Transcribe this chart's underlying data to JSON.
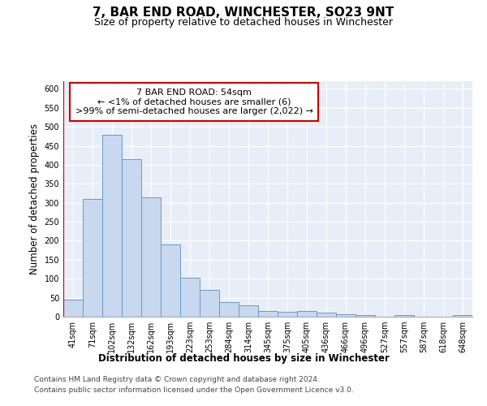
{
  "title": "7, BAR END ROAD, WINCHESTER, SO23 9NT",
  "subtitle": "Size of property relative to detached houses in Winchester",
  "xlabel": "Distribution of detached houses by size in Winchester",
  "ylabel": "Number of detached properties",
  "categories": [
    "41sqm",
    "71sqm",
    "102sqm",
    "132sqm",
    "162sqm",
    "193sqm",
    "223sqm",
    "253sqm",
    "284sqm",
    "314sqm",
    "345sqm",
    "375sqm",
    "405sqm",
    "436sqm",
    "466sqm",
    "496sqm",
    "527sqm",
    "557sqm",
    "587sqm",
    "618sqm",
    "648sqm"
  ],
  "values": [
    45,
    311,
    479,
    414,
    314,
    190,
    103,
    70,
    38,
    31,
    15,
    13,
    15,
    10,
    7,
    5,
    0,
    5,
    0,
    0,
    5
  ],
  "bar_color": "#c8d8ee",
  "bar_edge_color": "#6899cc",
  "annotation_line1": "7 BAR END ROAD: 54sqm",
  "annotation_line2": "← <1% of detached houses are smaller (6)",
  "annotation_line3": ">99% of semi-detached houses are larger (2,022) →",
  "annotation_box_color": "#ffffff",
  "annotation_box_edge_color": "#cc0000",
  "highlight_line_color": "#cc0000",
  "ylim": [
    0,
    620
  ],
  "yticks": [
    0,
    50,
    100,
    150,
    200,
    250,
    300,
    350,
    400,
    450,
    500,
    550,
    600
  ],
  "footer_line1": "Contains HM Land Registry data © Crown copyright and database right 2024.",
  "footer_line2": "Contains public sector information licensed under the Open Government Licence v3.0.",
  "bg_color": "#e8eef8",
  "grid_color": "#ffffff",
  "title_fontsize": 11,
  "subtitle_fontsize": 9,
  "axis_label_fontsize": 8.5,
  "tick_fontsize": 7,
  "footer_fontsize": 6.5,
  "annotation_fontsize": 8
}
